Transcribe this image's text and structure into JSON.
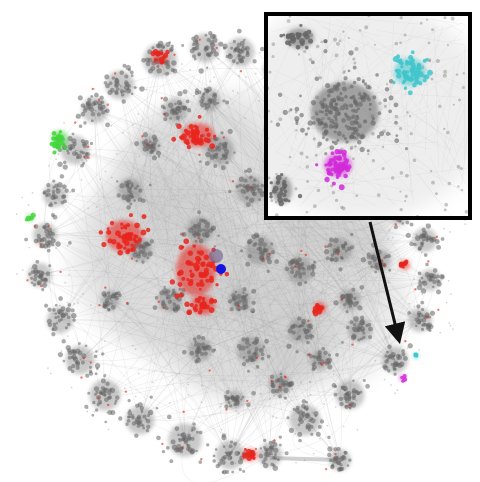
{
  "figure": {
    "colors": {
      "background": "#ffffff",
      "edge_haze": "#9a9a9a",
      "node_gray": "#666666",
      "red_cluster": "#e8241c",
      "green_cluster": "#3fd63a",
      "blue_node": "#1414e0",
      "cyan_cluster": "#3ec6cc",
      "magenta_cluster": "#d12ad8",
      "inset_border": "#000000",
      "arrow": "#111111"
    },
    "inset": {
      "description_icon": "zoom-inset-frame",
      "clusters": [
        "gray-hub",
        "cyan-cluster",
        "magenta-cluster"
      ]
    },
    "arrow_icon": "arrow-down-right-icon"
  }
}
